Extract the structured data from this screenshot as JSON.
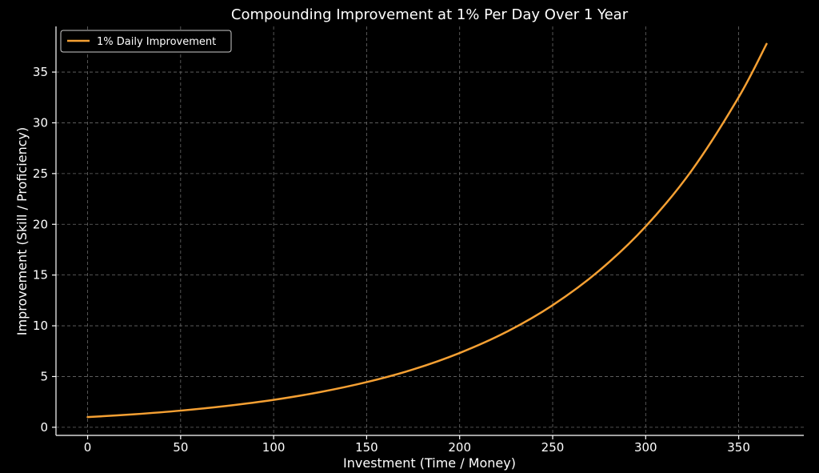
{
  "chart_data": {
    "type": "line",
    "title": "Compounding Improvement at 1% Per Day Over 1 Year",
    "xlabel": "Investment (Time / Money)",
    "ylabel": "Improvement (Skill / Proficiency)",
    "xlim": [
      -17,
      385
    ],
    "ylim": [
      -0.8,
      39.5
    ],
    "xticks": [
      0,
      50,
      100,
      150,
      200,
      250,
      300,
      350
    ],
    "yticks": [
      0,
      5,
      10,
      15,
      20,
      25,
      30,
      35
    ],
    "grid": true,
    "legend": {
      "position": "top-left"
    },
    "series": [
      {
        "name": "1% Daily Improvement",
        "color": "#f5a033",
        "x": [
          0,
          25,
          50,
          75,
          100,
          125,
          150,
          175,
          200,
          225,
          250,
          275,
          300,
          325,
          350,
          365
        ],
        "y": [
          1.0,
          1.28,
          1.64,
          2.11,
          2.7,
          3.47,
          4.45,
          5.7,
          7.32,
          9.38,
          12.03,
          15.43,
          19.79,
          25.37,
          32.53,
          37.78
        ]
      }
    ]
  }
}
